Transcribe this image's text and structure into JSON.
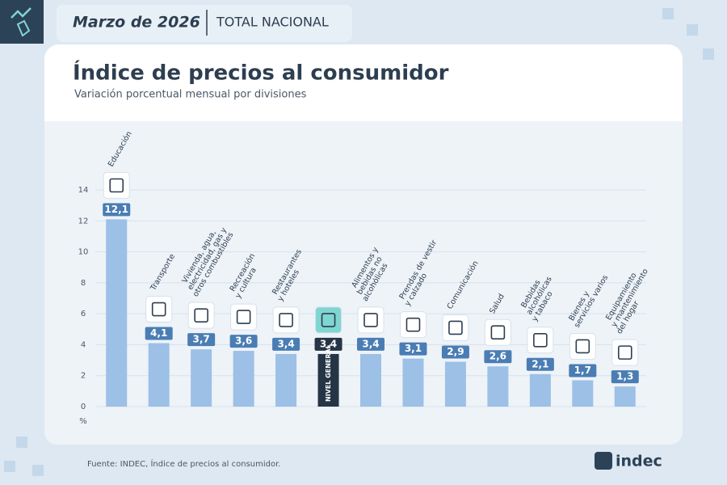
{
  "header": {
    "date": "Marzo de 2026",
    "scope": "TOTAL NACIONAL"
  },
  "chart_data": {
    "type": "bar",
    "title": "Índice de precios al consumidor",
    "subtitle": "Variación porcentual mensual por divisiones",
    "y_unit": "%",
    "categories": [
      "Educación",
      "Transporte",
      "Vivienda, agua,\nelectricidad, gas y\notros combustibles",
      "Recreación\ny cultura",
      "Restaurantes\ny hoteles",
      "NIVEL GENERAL",
      "Alimentos y\nbebidas no\nalcohólicas",
      "Prendas de vestir\ny calzado",
      "Comunicación",
      "Salud",
      "Bebidas\nalcohólicas\ny tabaco",
      "Bienes y\nservicios varios",
      "Equipamiento\ny mantenimiento\ndel hogar"
    ],
    "values": [
      12.1,
      4.1,
      3.7,
      3.6,
      3.4,
      3.4,
      3.4,
      3.1,
      2.9,
      2.6,
      2.1,
      1.7,
      1.3
    ],
    "value_labels": [
      "12,1",
      "4,1",
      "3,7",
      "3,6",
      "3,4",
      "3,4",
      "3,4",
      "3,1",
      "2,9",
      "2,6",
      "2,1",
      "1,7",
      "1,3"
    ],
    "color": "#9cc0e6",
    "label_color": "#4a7db3",
    "highlight": 5,
    "highlight_color": "#263546",
    "ylim": [
      0,
      14
    ],
    "yticks": [
      0,
      2,
      4,
      6,
      8,
      10,
      12,
      14
    ],
    "grid": true
  },
  "footer": {
    "source": "Fuente: INDEC, Índice de precios al consumidor.",
    "logo": "indec"
  }
}
